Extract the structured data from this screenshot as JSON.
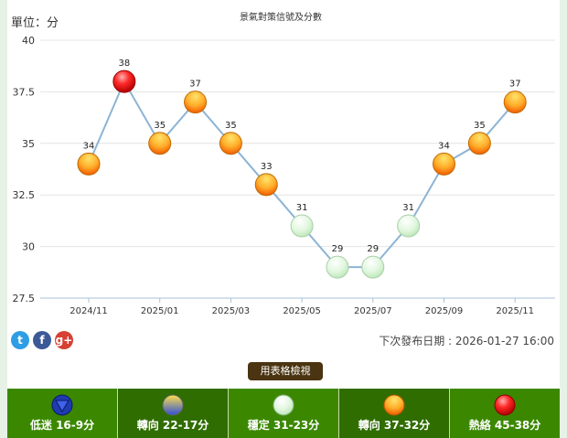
{
  "page": {
    "unit_label": "單位：分",
    "next_release": "下次發布日期 : 2026-01-27 16:00",
    "table_button": "用表格檢視",
    "social": [
      {
        "icon": "twitter-icon",
        "glyph": "t"
      },
      {
        "icon": "facebook-icon",
        "glyph": "f"
      },
      {
        "icon": "googleplus-icon",
        "glyph": "g+"
      }
    ]
  },
  "legend": [
    {
      "label": "低迷 16-9分",
      "symbol": "down-triangle-icon",
      "bg": "#3b8800"
    },
    {
      "label": "轉向 22-17分",
      "symbol": "yellow-blue-circle-icon",
      "bg": "#2f6d00"
    },
    {
      "label": "穩定 31-23分",
      "symbol": "green-circle-icon",
      "bg": "#3b8800"
    },
    {
      "label": "轉向 37-32分",
      "symbol": "yellow-red-circle-icon",
      "bg": "#2f6d00"
    },
    {
      "label": "熱絡 45-38分",
      "symbol": "red-circle-icon",
      "bg": "#3b8800"
    }
  ],
  "chart_data": {
    "type": "line",
    "title": "景氣對策信號及分數",
    "ylim": [
      27.5,
      40
    ],
    "yticks": [
      "27.5",
      "30",
      "32.5",
      "35",
      "37.5",
      "40"
    ],
    "xticks": [
      "2024/11",
      "2025/01",
      "2025/03",
      "2025/05",
      "2025/07",
      "2025/09",
      "2025/11"
    ],
    "x": [
      "2024/11",
      "2024/12",
      "2025/01",
      "2025/02",
      "2025/03",
      "2025/04",
      "2025/05",
      "2025/06",
      "2025/07",
      "2025/08",
      "2025/09",
      "2025/10",
      "2025/11"
    ],
    "series": [
      {
        "values": [
          34,
          38,
          35,
          37,
          35,
          33,
          31,
          29,
          29,
          31,
          34,
          35,
          37
        ]
      }
    ],
    "signal_colors": {
      "red": "#e60000",
      "yellow_red": "#ffb300",
      "green": "#d8f5d8"
    },
    "line_color": "#8db4d4",
    "grid": true
  }
}
